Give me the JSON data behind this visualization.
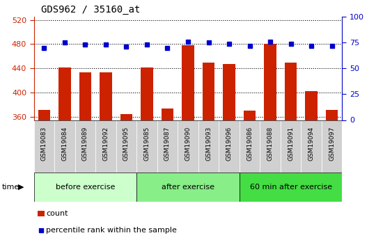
{
  "title": "GDS962 / 35160_at",
  "categories": [
    "GSM19083",
    "GSM19084",
    "GSM19089",
    "GSM19092",
    "GSM19095",
    "GSM19085",
    "GSM19087",
    "GSM19090",
    "GSM19093",
    "GSM19096",
    "GSM19086",
    "GSM19088",
    "GSM19091",
    "GSM19094",
    "GSM19097"
  ],
  "counts": [
    372,
    442,
    433,
    433,
    365,
    441,
    374,
    478,
    450,
    447,
    371,
    480,
    449,
    403,
    372
  ],
  "percentile_ranks": [
    70,
    75,
    73,
    73,
    71,
    73,
    70,
    76,
    75,
    74,
    72,
    76,
    74,
    72,
    72
  ],
  "ylim_left": [
    355,
    525
  ],
  "ylim_right": [
    0,
    100
  ],
  "yticks_left": [
    360,
    400,
    440,
    480,
    520
  ],
  "yticks_right": [
    0,
    25,
    50,
    75,
    100
  ],
  "groups": [
    {
      "label": "before exercise",
      "start": 0,
      "end": 5
    },
    {
      "label": "after exercise",
      "start": 5,
      "end": 10
    },
    {
      "label": "60 min after exercise",
      "start": 10,
      "end": 15
    }
  ],
  "group_colors": [
    "#ccffcc",
    "#88ee88",
    "#44dd44"
  ],
  "bar_color": "#cc2200",
  "dot_color": "#0000cc",
  "left_axis_color": "#cc2200",
  "right_axis_color": "#0000cc",
  "tick_label_bg": "#d0d0d0",
  "legend_items": [
    "count",
    "percentile rank within the sample"
  ],
  "fig_bg": "#ffffff"
}
